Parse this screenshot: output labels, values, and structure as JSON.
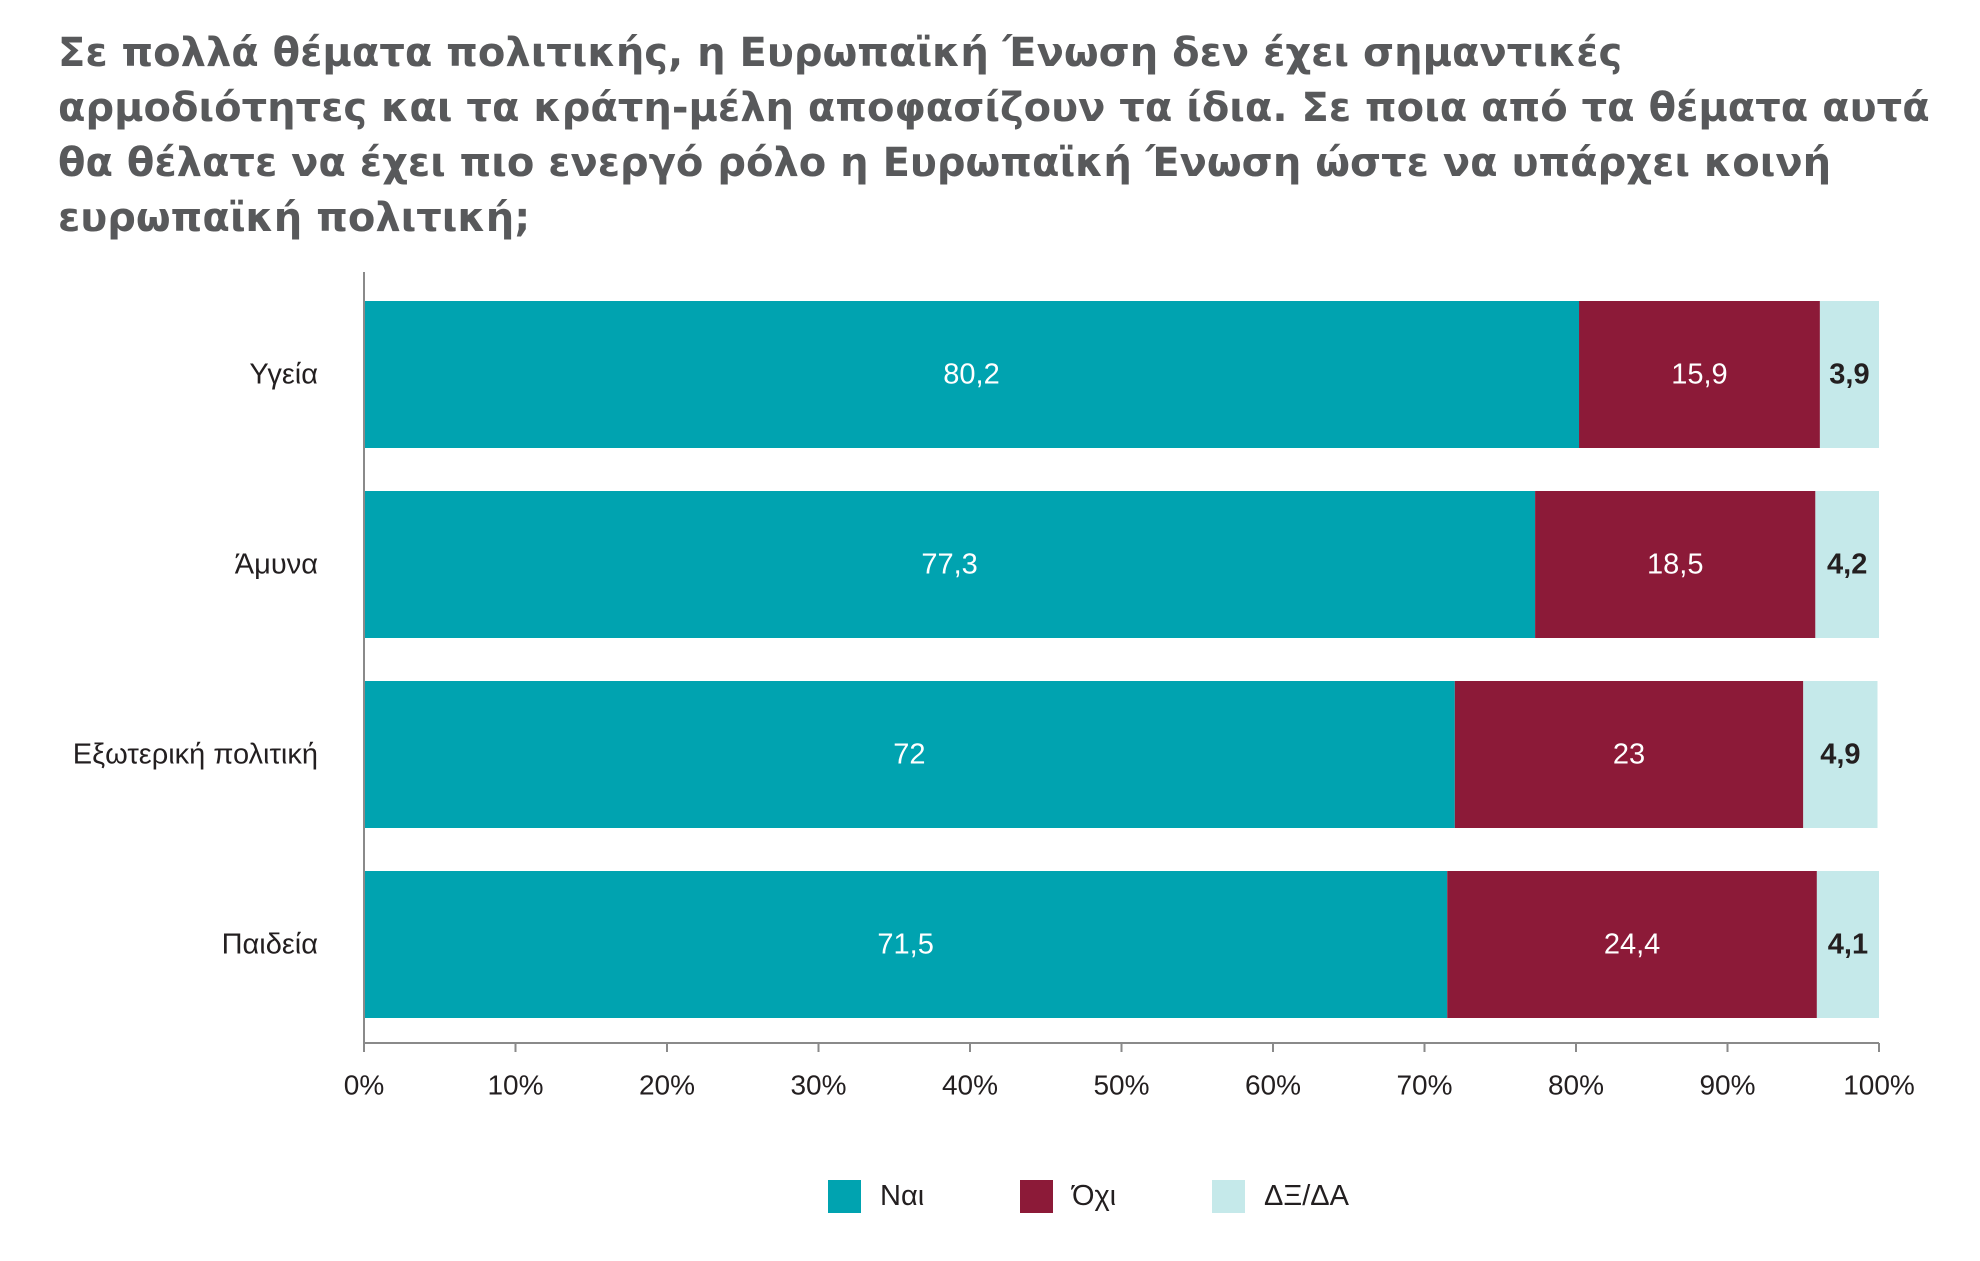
{
  "title": "Σε πολλά θέματα πολιτικής, η Ευρωπαϊκή Ένωση δεν έχει σημαντικές αρμοδιότητες και τα κράτη-μέλη αποφασίζουν τα ίδια. Σε ποια από τα θέματα αυτά θα θέλατε να έχει πιο ενεργό ρόλο η Ευρωπαϊκή Ένωση ώστε να υπάρχει κοινή ευρωπαϊκή πολιτική;",
  "chart_data": {
    "type": "bar",
    "orientation": "horizontal",
    "stacked": true,
    "categories": [
      "Υγεία",
      "Άμυνα",
      "Εξωτερική πολιτική",
      "Παιδεία"
    ],
    "series": [
      {
        "name": "Ναι",
        "color": "#00a3b0",
        "label_color": "#ffffff",
        "values": [
          80.2,
          77.3,
          72,
          71.5
        ],
        "labels": [
          "80,2",
          "77,3",
          "72",
          "71,5"
        ]
      },
      {
        "name": "Όχι",
        "color": "#8c1a38",
        "label_color": "#ffffff",
        "values": [
          15.9,
          18.5,
          23,
          24.4
        ],
        "labels": [
          "15,9",
          "18,5",
          "23",
          "24,4"
        ]
      },
      {
        "name": "ΔΞ/ΔΑ",
        "color": "#c5e9ea",
        "label_color": "#231f20",
        "values": [
          3.9,
          4.2,
          4.9,
          4.1
        ],
        "labels": [
          "3,9",
          "4,2",
          "4,9",
          "4,1"
        ]
      }
    ],
    "xlim": [
      0,
      100
    ],
    "xticks": [
      "0%",
      "10%",
      "20%",
      "30%",
      "40%",
      "50%",
      "60%",
      "70%",
      "80%",
      "90%",
      "100%"
    ],
    "grid": false,
    "legend_position": "bottom"
  }
}
